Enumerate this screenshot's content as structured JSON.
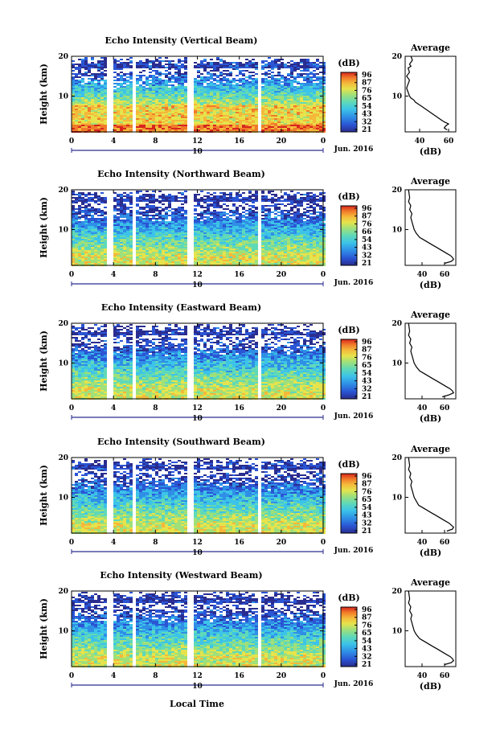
{
  "figure": {
    "xlabel": "Local Time",
    "date_label": "Jun. 2016",
    "day_marker": "10"
  },
  "chart_data": [
    {
      "type": "heatmap",
      "title": "Echo Intensity (Vertical Beam)",
      "ylabel": "Height (km)",
      "x_ticks": [
        "0",
        "4",
        "8",
        "12",
        "16",
        "20",
        "0"
      ],
      "y_ticks": [
        "20",
        "10"
      ],
      "xlim": [
        0,
        24
      ],
      "ylim": [
        1,
        20
      ],
      "colorbar": {
        "unit": "(dB)",
        "ticks": [
          "96",
          "87",
          "76",
          "65",
          "54",
          "43",
          "32",
          "21"
        ],
        "range": [
          21,
          96
        ]
      },
      "data_gaps_hours": [
        [
          3.3,
          3.8
        ],
        [
          5.6,
          6.0
        ],
        [
          11.0,
          11.5
        ],
        [
          17.6,
          18.0
        ]
      ]
    },
    {
      "type": "heatmap",
      "title": "Echo Intensity (Northward Beam)",
      "ylabel": "Height (km)",
      "x_ticks": [
        "0",
        "4",
        "8",
        "12",
        "16",
        "20",
        "0"
      ],
      "y_ticks": [
        "20",
        "10"
      ],
      "xlim": [
        0,
        24
      ],
      "ylim": [
        1,
        20
      ],
      "colorbar": {
        "unit": "(dB)",
        "ticks": [
          "96",
          "87",
          "76",
          "66",
          "54",
          "43",
          "32",
          "21"
        ],
        "range": [
          21,
          96
        ]
      },
      "data_gaps_hours": [
        [
          3.3,
          3.8
        ],
        [
          5.6,
          6.0
        ],
        [
          11.0,
          11.5
        ],
        [
          17.6,
          18.0
        ]
      ]
    },
    {
      "type": "heatmap",
      "title": "Echo Intensity (Eastward Beam)",
      "ylabel": "Height (km)",
      "x_ticks": [
        "0",
        "4",
        "8",
        "12",
        "16",
        "20",
        "0"
      ],
      "y_ticks": [
        "20",
        "10"
      ],
      "xlim": [
        0,
        24
      ],
      "ylim": [
        1,
        20
      ],
      "colorbar": {
        "unit": "(dB)",
        "ticks": [
          "96",
          "87",
          "76",
          "65",
          "54",
          "43",
          "32",
          "21"
        ],
        "range": [
          21,
          96
        ]
      },
      "data_gaps_hours": [
        [
          3.3,
          3.8
        ],
        [
          5.6,
          6.0
        ],
        [
          11.0,
          11.5
        ],
        [
          17.6,
          18.0
        ]
      ]
    },
    {
      "type": "heatmap",
      "title": "Echo Intensity (Southward Beam)",
      "ylabel": "Height (km)",
      "x_ticks": [
        "0",
        "4",
        "8",
        "12",
        "16",
        "20",
        "0"
      ],
      "y_ticks": [
        "20",
        "10"
      ],
      "xlim": [
        0,
        24
      ],
      "ylim": [
        1,
        20
      ],
      "colorbar": {
        "unit": "(dB)",
        "ticks": [
          "96",
          "87",
          "76",
          "65",
          "54",
          "43",
          "32",
          "21"
        ],
        "range": [
          21,
          96
        ]
      },
      "data_gaps_hours": [
        [
          3.3,
          3.8
        ],
        [
          5.6,
          6.0
        ],
        [
          11.0,
          11.5
        ],
        [
          17.6,
          18.0
        ]
      ]
    },
    {
      "type": "heatmap",
      "title": "Echo Intensity (Westward Beam)",
      "ylabel": "Height (km)",
      "x_ticks": [
        "0",
        "4",
        "8",
        "12",
        "16",
        "20",
        "0"
      ],
      "y_ticks": [
        "20",
        "10"
      ],
      "xlim": [
        0,
        24
      ],
      "ylim": [
        1,
        20
      ],
      "colorbar": {
        "unit": "(dB)",
        "ticks": [
          "96",
          "87",
          "76",
          "65",
          "54",
          "43",
          "32",
          "21"
        ],
        "range": [
          21,
          96
        ]
      },
      "data_gaps_hours": [
        [
          3.3,
          3.8
        ],
        [
          5.6,
          6.0
        ],
        [
          11.0,
          11.5
        ],
        [
          17.6,
          18.0
        ]
      ]
    },
    {
      "type": "line",
      "title": "Average",
      "xlabel": "(dB)",
      "x_ticks": [
        "40",
        "60"
      ],
      "y_ticks": [
        "20",
        "10"
      ],
      "xlim": [
        30,
        65
      ],
      "ylim": [
        1,
        20
      ],
      "x": [
        59,
        57,
        58,
        60,
        57,
        55,
        53,
        51,
        49,
        47,
        45,
        43,
        41,
        39,
        37,
        36,
        34,
        33,
        32,
        31,
        32,
        33,
        31,
        33,
        32,
        34,
        33,
        35,
        34
      ],
      "y": [
        1.5,
        2,
        2.5,
        3,
        3.5,
        4,
        4.5,
        5,
        5.5,
        6,
        6.5,
        7,
        7.5,
        8,
        8.5,
        9,
        9.5,
        10,
        11,
        12,
        13,
        14,
        15,
        16,
        17,
        17.5,
        18,
        19,
        20
      ]
    },
    {
      "type": "line",
      "title": "Average",
      "xlabel": "(dB)",
      "x_ticks": [
        "40",
        "60"
      ],
      "y_ticks": [
        "20",
        "10"
      ],
      "xlim": [
        25,
        70
      ],
      "ylim": [
        1,
        20
      ],
      "x": [
        60,
        66,
        68,
        67,
        65,
        62,
        59,
        56,
        53,
        50,
        47,
        44,
        41,
        38,
        35,
        33,
        31,
        30,
        31,
        29,
        30,
        28,
        29,
        28
      ],
      "y": [
        1.5,
        2,
        2.5,
        3,
        3.5,
        4,
        4.5,
        5,
        5.5,
        6,
        6.5,
        7,
        7.5,
        8,
        9,
        10,
        12,
        13,
        14,
        15,
        16,
        17,
        18,
        20
      ]
    },
    {
      "type": "line",
      "title": "Average",
      "xlabel": "(dB)",
      "x_ticks": [
        "40",
        "60"
      ],
      "y_ticks": [
        "20",
        "10"
      ],
      "xlim": [
        25,
        70
      ],
      "ylim": [
        1,
        20
      ],
      "x": [
        58,
        64,
        68,
        67,
        65,
        62,
        59,
        56,
        53,
        50,
        47,
        44,
        41,
        38,
        35,
        33,
        31,
        30,
        31,
        29,
        30,
        28,
        29,
        28
      ],
      "y": [
        1.5,
        2,
        2.5,
        3,
        3.5,
        4,
        4.5,
        5,
        5.5,
        6,
        6.5,
        7,
        7.5,
        8,
        9,
        10,
        12,
        13,
        14,
        15,
        16,
        17,
        18,
        20
      ]
    },
    {
      "type": "line",
      "title": "Average",
      "xlabel": "(dB)",
      "x_ticks": [
        "40",
        "60"
      ],
      "y_ticks": [
        "20",
        "10"
      ],
      "xlim": [
        25,
        70
      ],
      "ylim": [
        1,
        20
      ],
      "x": [
        62,
        67,
        68,
        66,
        64,
        61,
        58,
        55,
        52,
        49,
        46,
        43,
        40,
        37,
        35,
        33,
        31,
        30,
        31,
        29,
        30,
        28,
        29,
        28
      ],
      "y": [
        1.5,
        2,
        2.5,
        3,
        3.5,
        4,
        4.5,
        5,
        5.5,
        6,
        6.5,
        7,
        7.5,
        8,
        9,
        10,
        12,
        13,
        14,
        15,
        16,
        17,
        18,
        20
      ]
    },
    {
      "type": "line",
      "title": "Average",
      "xlabel": "(dB)",
      "x_ticks": [
        "40",
        "60"
      ],
      "y_ticks": [
        "20",
        "10"
      ],
      "xlim": [
        25,
        70
      ],
      "ylim": [
        1,
        20
      ],
      "x": [
        60,
        66,
        68,
        67,
        65,
        62,
        59,
        56,
        53,
        50,
        47,
        44,
        41,
        38,
        35,
        33,
        31,
        30,
        31,
        29,
        30,
        28,
        29,
        28
      ],
      "y": [
        1.5,
        2,
        2.5,
        3,
        3.5,
        4,
        4.5,
        5,
        5.5,
        6,
        6.5,
        7,
        7.5,
        8,
        9,
        10,
        12,
        13,
        14,
        15,
        16,
        17,
        18,
        20
      ]
    }
  ],
  "colors": {
    "colormap": [
      "#2a2d8f",
      "#2a55d4",
      "#2f8fe6",
      "#3cc3e8",
      "#5fd9b8",
      "#9fe07a",
      "#e6e34c",
      "#f5b83a",
      "#f07a2a",
      "#d7261e"
    ]
  }
}
